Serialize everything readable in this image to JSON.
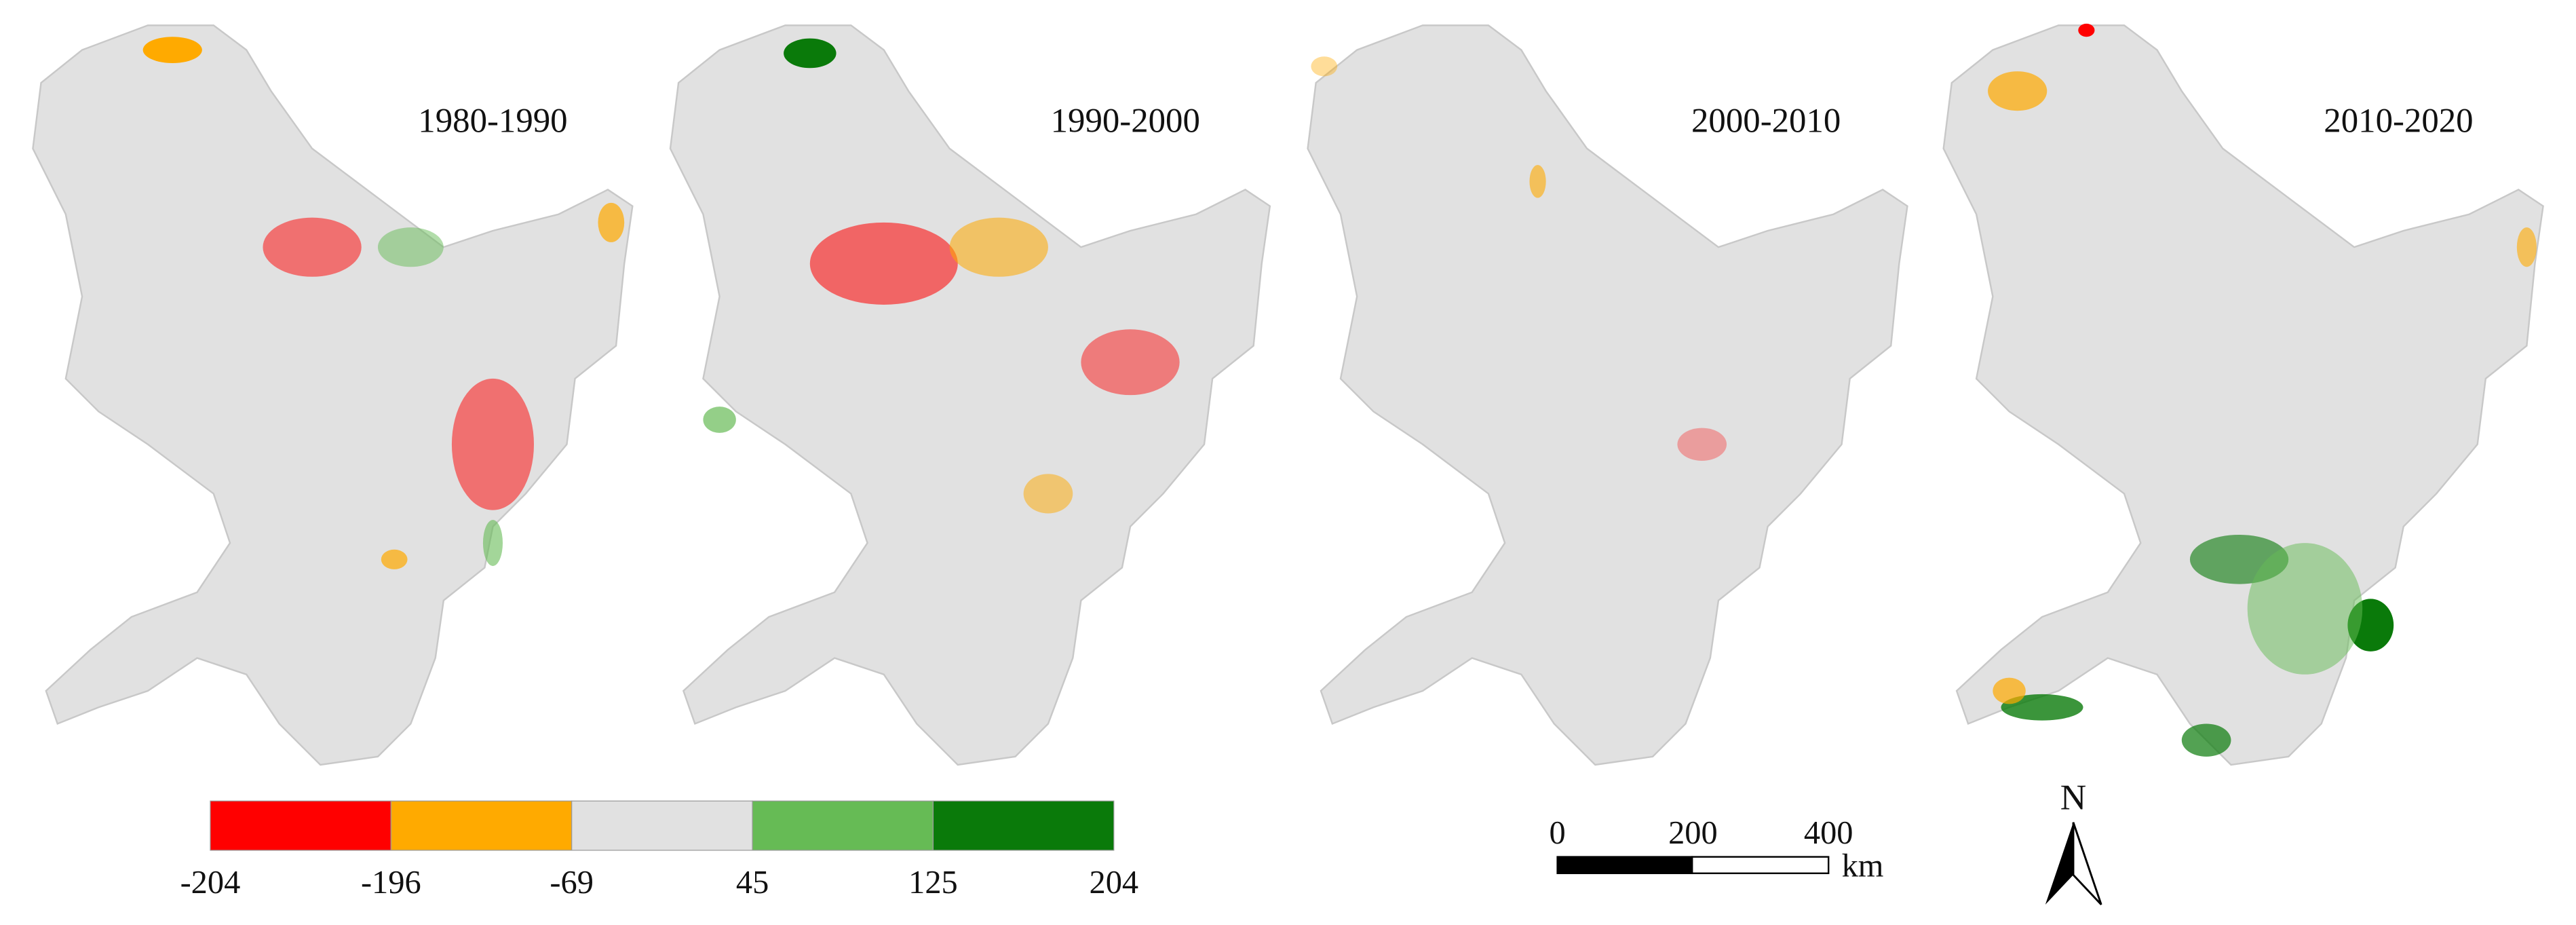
{
  "panels": [
    {
      "label": "1980-1990"
    },
    {
      "label": "1990-2000"
    },
    {
      "label": "2000-2010"
    },
    {
      "label": "2010-2020"
    }
  ],
  "legend": {
    "breaks": [
      -204,
      -196,
      -69,
      45,
      125,
      204
    ],
    "colors": [
      "#ff0000",
      "#ffaa00",
      "#e1e1e1",
      "#66bb55",
      "#0a7a0a"
    ]
  },
  "scale_bar": {
    "ticks": [
      0,
      200,
      400
    ],
    "unit": "km"
  },
  "north_arrow": "N"
}
